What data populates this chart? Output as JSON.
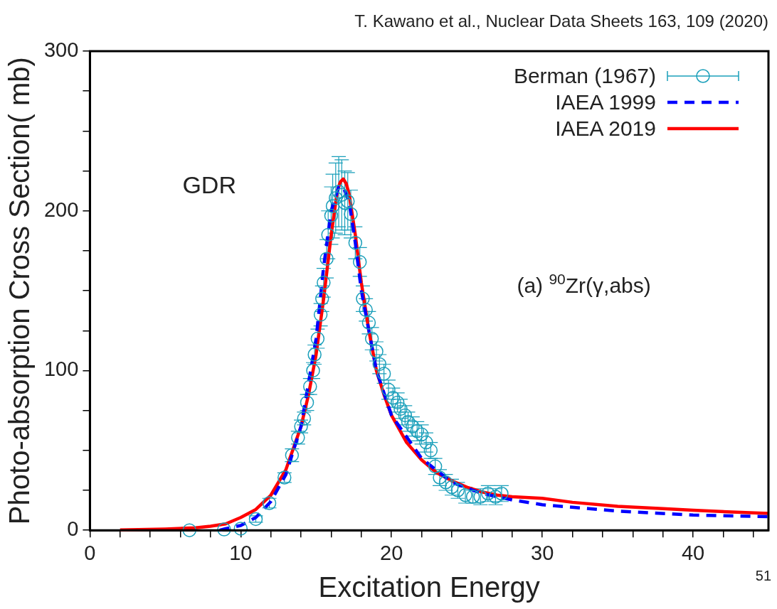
{
  "chart_data": {
    "type": "scatter",
    "xlabel": "Excitation Energy",
    "ylabel": "Photo-absorption Cross Section( mb)",
    "annotations": [
      "T. Kawano et al., Nuclear Data Sheets 163, 109 (2020)",
      "GDR",
      "(a) $^{90}$Zr(γ,abs)",
      "51"
    ],
    "xlim": [
      0,
      45
    ],
    "xticks": [
      0,
      {
        "value": 2,
        "label": null
      },
      {
        "value": 4,
        "label": null
      },
      {
        "value": 6,
        "label": null
      },
      {
        "value": 8,
        "label": null
      },
      10,
      {
        "value": 12,
        "label": null
      },
      {
        "value": 14,
        "label": null
      },
      {
        "value": 16,
        "label": null
      },
      {
        "value": 18,
        "label": null
      },
      20,
      {
        "value": 22,
        "label": null
      },
      {
        "value": 24,
        "label": null
      },
      {
        "value": 26,
        "label": null
      },
      {
        "value": 28,
        "label": null
      },
      30,
      {
        "value": 32,
        "label": null
      },
      {
        "value": 34,
        "label": null
      },
      {
        "value": 36,
        "label": null
      },
      {
        "value": 38,
        "label": null
      },
      40,
      {
        "value": 42,
        "label": null
      },
      {
        "value": 44,
        "label": null
      }
    ],
    "ylim": [
      0,
      300
    ],
    "yticks": [
      0,
      {
        "value": 25,
        "label": null
      },
      {
        "value": 50,
        "label": null
      },
      {
        "value": 75,
        "label": null
      },
      100,
      {
        "value": 125,
        "label": null
      },
      {
        "value": 150,
        "label": null
      },
      {
        "value": 175,
        "label": null
      },
      200,
      {
        "value": 225,
        "label": null
      },
      {
        "value": 250,
        "label": null
      },
      {
        "value": 275,
        "label": null
      },
      300
    ],
    "grid": false,
    "legend": "top right",
    "series": [
      {
        "name": "Berman (1967)",
        "color": "#1a9fba",
        "marker": "circle",
        "x": [
          6.6,
          8.9,
          10.0,
          11.0,
          11.9,
          12.9,
          13.4,
          13.8,
          14.0,
          14.2,
          14.4,
          14.6,
          14.8,
          14.9,
          15.1,
          15.3,
          15.4,
          15.5,
          15.7,
          15.8,
          16.0,
          16.1,
          16.3,
          16.5,
          16.7,
          16.9,
          17.1,
          17.3,
          17.6,
          17.9,
          18.1,
          18.3,
          18.5,
          18.7,
          19.0,
          19.2,
          19.5,
          19.8,
          20.1,
          20.4,
          20.6,
          20.9,
          21.1,
          21.4,
          21.7,
          22.0,
          22.3,
          22.6,
          22.9,
          23.2,
          23.6,
          24.0,
          24.4,
          24.9,
          25.4,
          25.9,
          26.4,
          26.9,
          27.3
        ],
        "values": [
          0,
          0.5,
          1,
          7,
          17,
          33,
          47,
          58,
          65,
          70,
          80,
          90,
          100,
          110,
          120,
          135,
          145,
          155,
          170,
          185,
          197,
          203,
          208,
          212,
          210,
          205,
          206,
          198,
          180,
          168,
          145,
          138,
          130,
          120,
          112,
          104,
          98,
          88,
          83,
          80,
          76,
          72,
          68,
          65,
          62,
          60,
          55,
          50,
          40,
          33,
          30,
          27,
          25,
          22,
          21,
          21,
          23,
          21,
          23
        ],
        "errors": [
          null,
          null,
          null,
          2,
          3,
          3,
          4,
          4,
          4,
          4,
          5,
          5,
          5,
          6,
          6,
          7,
          8,
          9,
          12,
          15,
          18,
          20,
          22,
          22,
          22,
          20,
          18,
          15,
          10,
          9,
          8,
          7,
          7,
          7,
          6,
          6,
          6,
          6,
          6,
          6,
          6,
          6,
          6,
          6,
          6,
          6,
          6,
          5,
          5,
          5,
          5,
          5,
          5,
          5,
          4,
          5,
          5,
          5,
          5
        ]
      },
      {
        "name": "IAEA 1999",
        "type": "line",
        "color": "#0000ff",
        "line_style": "dashed",
        "x": [
          8.6,
          9,
          10,
          11,
          12,
          13,
          14,
          15,
          15.5,
          16,
          16.5,
          16.8,
          17.2,
          17.6,
          18,
          19,
          20,
          22,
          24,
          26,
          28,
          30,
          35,
          40,
          45
        ],
        "values": [
          0,
          1,
          3,
          8,
          18,
          35,
          65,
          120,
          165,
          200,
          215,
          215,
          205,
          180,
          150,
          100,
          72,
          45,
          30,
          23,
          19,
          16,
          12,
          9.5,
          8.5
        ]
      },
      {
        "name": "IAEA 2019",
        "type": "line",
        "color": "#ff0000",
        "line_style": "solid",
        "x": [
          2,
          5,
          7,
          8,
          9,
          10,
          11,
          12,
          13,
          14,
          14.5,
          15,
          15.5,
          16,
          16.4,
          16.6,
          16.8,
          17.0,
          17.2,
          17.6,
          18,
          18.5,
          19,
          19.5,
          20,
          21,
          22,
          23,
          24,
          25,
          26,
          27,
          28,
          30,
          32,
          35,
          38,
          40,
          45
        ],
        "values": [
          0.2,
          0.8,
          1.5,
          2.5,
          4,
          8,
          13,
          22,
          38,
          65,
          85,
          110,
          145,
          185,
          212,
          218,
          220,
          217,
          210,
          185,
          155,
          125,
          100,
          85,
          72,
          55,
          44,
          36,
          31,
          27,
          24,
          22,
          21,
          20,
          17.5,
          15,
          13.5,
          12.5,
          10.5
        ]
      }
    ]
  }
}
